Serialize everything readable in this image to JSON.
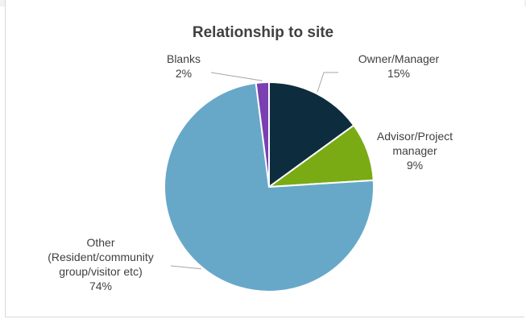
{
  "chart_data": {
    "type": "pie",
    "title": "Relationship to site",
    "slices": [
      {
        "label": "Owner/Manager",
        "label_lines": [
          "Owner/Manager"
        ],
        "percent_label": "15%",
        "value": 15,
        "color": "#0d2d3f"
      },
      {
        "label": "Advisor/Project manager",
        "label_lines": [
          "Advisor/Project",
          "manager"
        ],
        "percent_label": "9%",
        "value": 9,
        "color": "#7aab14"
      },
      {
        "label": "Other (Resident/community group/visitor etc)",
        "label_lines": [
          "Other",
          "(Resident/community",
          "group/visitor etc)"
        ],
        "percent_label": "74%",
        "value": 74,
        "color": "#67a8c9"
      },
      {
        "label": "Blanks",
        "label_lines": [
          "Blanks"
        ],
        "percent_label": "2%",
        "value": 2,
        "color": "#7a3fb0"
      }
    ]
  }
}
